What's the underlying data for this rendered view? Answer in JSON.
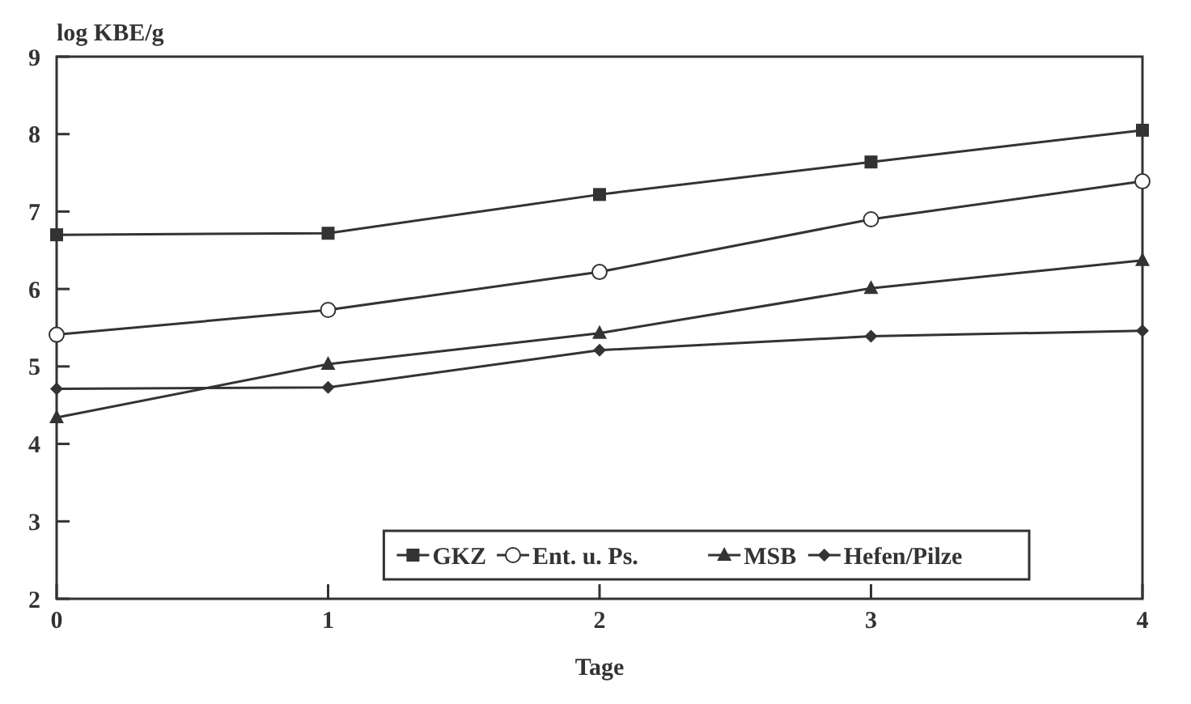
{
  "chart_data": {
    "type": "line",
    "xlabel": "Tage",
    "ylabel": "log KBE/g",
    "x": [
      0,
      1,
      2,
      3,
      4
    ],
    "xlim": [
      0,
      4
    ],
    "xticks": [
      0,
      1,
      2,
      3,
      4
    ],
    "ylim": [
      2,
      9
    ],
    "yticks": [
      2,
      3,
      4,
      5,
      6,
      7,
      8,
      9
    ],
    "grid": false,
    "legend": "bottom right",
    "line_style": "solid",
    "series": [
      {
        "name": "GKZ",
        "color": "#333333",
        "marker": "square",
        "values": [
          6.7,
          6.72,
          7.22,
          7.64,
          8.05
        ]
      },
      {
        "name": "Ent. u. Ps.",
        "color": "#333333",
        "marker": "circle",
        "values": [
          5.41,
          5.73,
          6.22,
          6.9,
          7.39
        ]
      },
      {
        "name": "MSB",
        "color": "#333333",
        "marker": "triangle",
        "values": [
          4.34,
          5.03,
          5.43,
          6.01,
          6.37
        ]
      },
      {
        "name": "Hefen/Pilze",
        "color": "#333333",
        "marker": "diamond",
        "values": [
          4.71,
          4.73,
          5.21,
          5.39,
          5.46
        ]
      }
    ]
  }
}
